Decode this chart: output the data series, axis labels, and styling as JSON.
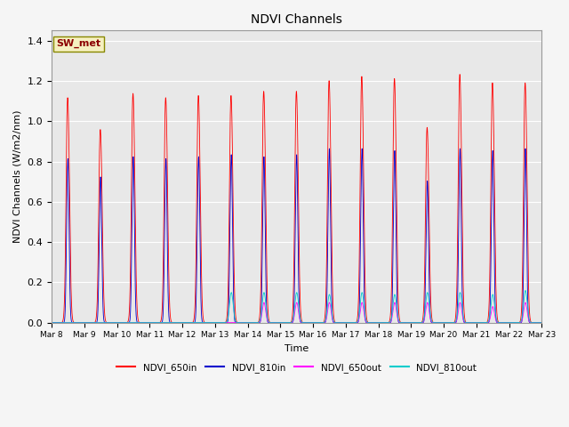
{
  "title": "NDVI Channels",
  "xlabel": "Time",
  "ylabel": "NDVI Channels (W/m2/nm)",
  "ylim": [
    0,
    1.45
  ],
  "background_color": "#f5f5f5",
  "plot_bg_color": "#e8e8e8",
  "station_label": "SW_met",
  "legend_entries": [
    "NDVI_650in",
    "NDVI_810in",
    "NDVI_650out",
    "NDVI_810out"
  ],
  "line_colors": [
    "#ff0000",
    "#0000cc",
    "#ff00ff",
    "#00cccc"
  ],
  "n_days": 15,
  "peaks_650in": [
    1.06,
    0.91,
    1.08,
    1.06,
    1.07,
    1.07,
    1.09,
    1.09,
    1.14,
    1.16,
    1.15,
    0.92,
    1.17,
    1.13,
    1.13
  ],
  "peaks_810in": [
    0.81,
    0.72,
    0.82,
    0.81,
    0.82,
    0.83,
    0.82,
    0.83,
    0.86,
    0.86,
    0.85,
    0.7,
    0.86,
    0.85,
    0.86
  ],
  "peaks_650out": [
    0.0,
    0.0,
    0.0,
    0.0,
    0.0,
    0.0,
    0.1,
    0.1,
    0.1,
    0.1,
    0.1,
    0.1,
    0.1,
    0.08,
    0.1
  ],
  "peaks_810out": [
    0.0,
    0.0,
    0.0,
    0.0,
    0.0,
    0.15,
    0.15,
    0.15,
    0.14,
    0.15,
    0.14,
    0.15,
    0.15,
    0.14,
    0.16
  ],
  "yticks": [
    0.0,
    0.2,
    0.4,
    0.6,
    0.8,
    1.0,
    1.2,
    1.4
  ],
  "xtick_labels": [
    "Mar 8",
    "Mar 9",
    "Mar 10",
    "Mar 11",
    "Mar 12",
    "Mar 13",
    "Mar 14",
    "Mar 15",
    "Mar 16",
    "Mar 17",
    "Mar 18",
    "Mar 19",
    "Mar 20",
    "Mar 21",
    "Mar 22",
    "Mar 23"
  ]
}
